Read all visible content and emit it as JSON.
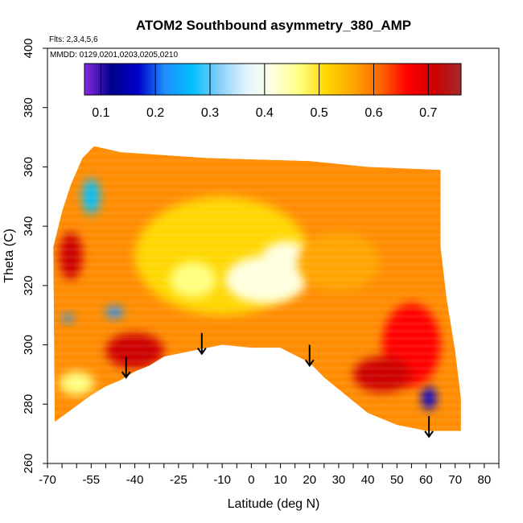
{
  "chart_data": {
    "type": "heatmap",
    "title": "ATOM2 Southbound asymmetry_380_AMP",
    "annotations": {
      "flights": "Flts: 2,3,4,5,6",
      "dates": "MMDD: 0129,0201,0203,0205,0210"
    },
    "xlabel": "Latitude (deg N)",
    "ylabel": "Theta (C)",
    "xlim": [
      -70,
      85
    ],
    "ylim": [
      260,
      400
    ],
    "x_ticks": [
      -70,
      -65,
      -60,
      -55,
      -50,
      -45,
      -40,
      -35,
      -30,
      -25,
      -20,
      -15,
      -10,
      -5,
      0,
      5,
      10,
      15,
      20,
      25,
      30,
      35,
      40,
      45,
      50,
      55,
      60,
      65,
      70,
      75,
      80,
      85
    ],
    "x_tick_labels": [
      "-70",
      "-55",
      "-40",
      "-25",
      "-10",
      "0",
      "10",
      "20",
      "30",
      "40",
      "50",
      "60",
      "70",
      "80"
    ],
    "x_tick_label_values": [
      -70,
      -55,
      -40,
      -25,
      -10,
      0,
      10,
      20,
      30,
      40,
      50,
      60,
      70,
      80
    ],
    "y_ticks": [
      260,
      280,
      300,
      320,
      340,
      360,
      380,
      400
    ],
    "y_tick_labels": [
      "260",
      "280",
      "300",
      "320",
      "340",
      "360",
      "380",
      "400"
    ],
    "colorbar": {
      "range": [
        0.07,
        0.76
      ],
      "tick_values": [
        0.1,
        0.2,
        0.3,
        0.4,
        0.5,
        0.6,
        0.7
      ],
      "tick_labels": [
        "0.1",
        "0.2",
        "0.3",
        "0.4",
        "0.5",
        "0.6",
        "0.7"
      ],
      "colors": [
        "#8a2be2",
        "#00008b",
        "#0000cd",
        "#1e90ff",
        "#00bfff",
        "#87cefa",
        "#e0f4ff",
        "#ffffe0",
        "#ffff80",
        "#ffd700",
        "#ffa500",
        "#ff6600",
        "#ff0000",
        "#cd0000",
        "#a52a2a"
      ]
    },
    "field": {
      "outline": [
        [
          -67.5,
          274
        ],
        [
          -62,
          278
        ],
        [
          -55,
          283
        ],
        [
          -50,
          286
        ],
        [
          -45,
          288
        ],
        [
          -40,
          291
        ],
        [
          -35,
          293
        ],
        [
          -30,
          296
        ],
        [
          -20,
          298
        ],
        [
          -10,
          300
        ],
        [
          0,
          299
        ],
        [
          10,
          299
        ],
        [
          20,
          294
        ],
        [
          25,
          289
        ],
        [
          30,
          285
        ],
        [
          35,
          281
        ],
        [
          40,
          277
        ],
        [
          45,
          275
        ],
        [
          50,
          273
        ],
        [
          55,
          272
        ],
        [
          60,
          271
        ],
        [
          65,
          271
        ],
        [
          72,
          271
        ],
        [
          72,
          282
        ],
        [
          70,
          298
        ],
        [
          67,
          316
        ],
        [
          65,
          333
        ],
        [
          65,
          359
        ],
        [
          40,
          360
        ],
        [
          20,
          362
        ],
        [
          -15,
          363
        ],
        [
          -30,
          364
        ],
        [
          -45,
          365
        ],
        [
          -54,
          367
        ],
        [
          -58,
          363
        ],
        [
          -62,
          354
        ],
        [
          -65,
          345
        ],
        [
          -67,
          337
        ],
        [
          -68,
          333
        ]
      ],
      "base_color": "#ff8c00",
      "patches": [
        {
          "lat": -10,
          "theta": 330,
          "rx": 30,
          "ry": 20,
          "value": 0.52
        },
        {
          "lat": 5,
          "theta": 322,
          "rx": 14,
          "ry": 8,
          "value": 0.4
        },
        {
          "lat": 12,
          "theta": 330,
          "rx": 8,
          "ry": 5,
          "value": 0.4
        },
        {
          "lat": -20,
          "theta": 322,
          "rx": 8,
          "ry": 6,
          "value": 0.46
        },
        {
          "lat": 30,
          "theta": 328,
          "rx": 14,
          "ry": 10,
          "value": 0.54
        },
        {
          "lat": -55,
          "theta": 350,
          "rx": 3,
          "ry": 6,
          "value": 0.26
        },
        {
          "lat": -47,
          "theta": 311,
          "rx": 3,
          "ry": 2,
          "value": 0.24
        },
        {
          "lat": -63,
          "theta": 309,
          "rx": 2,
          "ry": 1.5,
          "value": 0.24
        },
        {
          "lat": -60,
          "theta": 287,
          "rx": 6,
          "ry": 4,
          "value": 0.46
        },
        {
          "lat": 61,
          "theta": 282,
          "rx": 2.5,
          "ry": 4,
          "value": 0.2
        },
        {
          "lat": 55,
          "theta": 300,
          "rx": 10,
          "ry": 14,
          "value": 0.66
        },
        {
          "lat": -62,
          "theta": 330,
          "rx": 4,
          "ry": 8,
          "value": 0.7
        },
        {
          "lat": -40,
          "theta": 298,
          "rx": 10,
          "ry": 6,
          "value": 0.68
        },
        {
          "lat": 45,
          "theta": 290,
          "rx": 10,
          "ry": 6,
          "value": 0.68
        }
      ]
    },
    "arrows": [
      {
        "lat": -43,
        "theta_top": 296,
        "theta_tip": 289
      },
      {
        "lat": -17,
        "theta_top": 304,
        "theta_tip": 297
      },
      {
        "lat": 20,
        "theta_top": 300,
        "theta_tip": 293
      },
      {
        "lat": 61,
        "theta_top": 276,
        "theta_tip": 269
      }
    ]
  }
}
